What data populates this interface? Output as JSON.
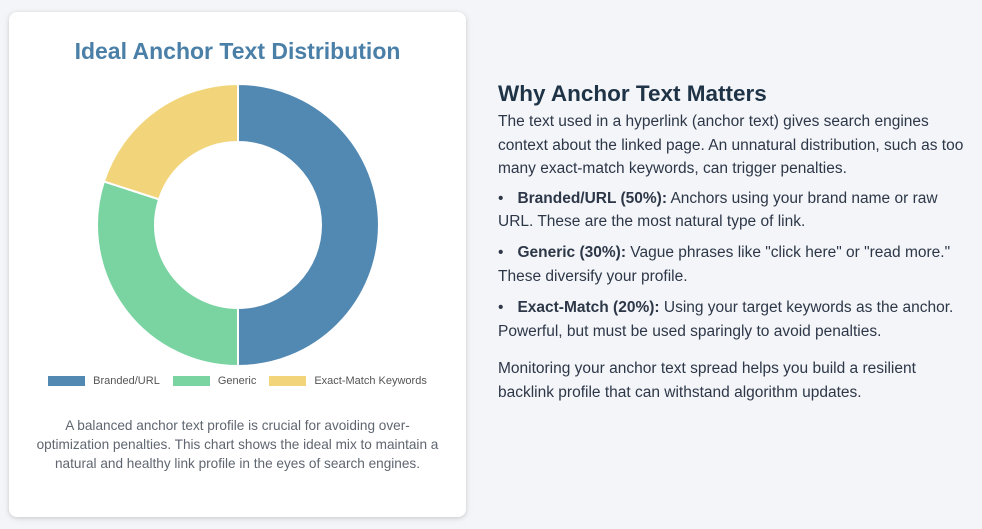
{
  "card": {
    "caption": "A balanced anchor text profile is crucial for avoiding over-optimization penalties. This chart shows the ideal mix to maintain a natural and healthy link profile in the eyes of search engines."
  },
  "chart_data": {
    "type": "pie",
    "variant": "doughnut",
    "title": "Ideal Anchor Text Distribution",
    "categories": [
      "Branded/URL",
      "Generic",
      "Exact-Match Keywords"
    ],
    "values": [
      50,
      30,
      20
    ],
    "colors": [
      "#5289b3",
      "#7ad4a2",
      "#f2d57a"
    ],
    "legend_position": "bottom"
  },
  "info": {
    "title": "Why Anchor Text Matters",
    "intro": "The text used in a hyperlink (anchor text) gives search engines context about the linked page. An unnatural distribution, such as too many exact-match keywords, can trigger penalties.",
    "items": [
      {
        "label": "Branded/URL (50%):",
        "text": " Anchors using your brand name or raw URL. These are the most natural type of link."
      },
      {
        "label": "Generic (30%):",
        "text": " Vague phrases like \"click here\" or \"read more.\" These diversify your profile."
      },
      {
        "label": "Exact-Match (20%):",
        "text": " Using your target keywords as the anchor. Powerful, but must be used sparingly to avoid penalties."
      }
    ],
    "outro": "Monitoring your anchor text spread helps you build a resilient backlink profile that can withstand algorithm updates.",
    "bullet": "•"
  }
}
